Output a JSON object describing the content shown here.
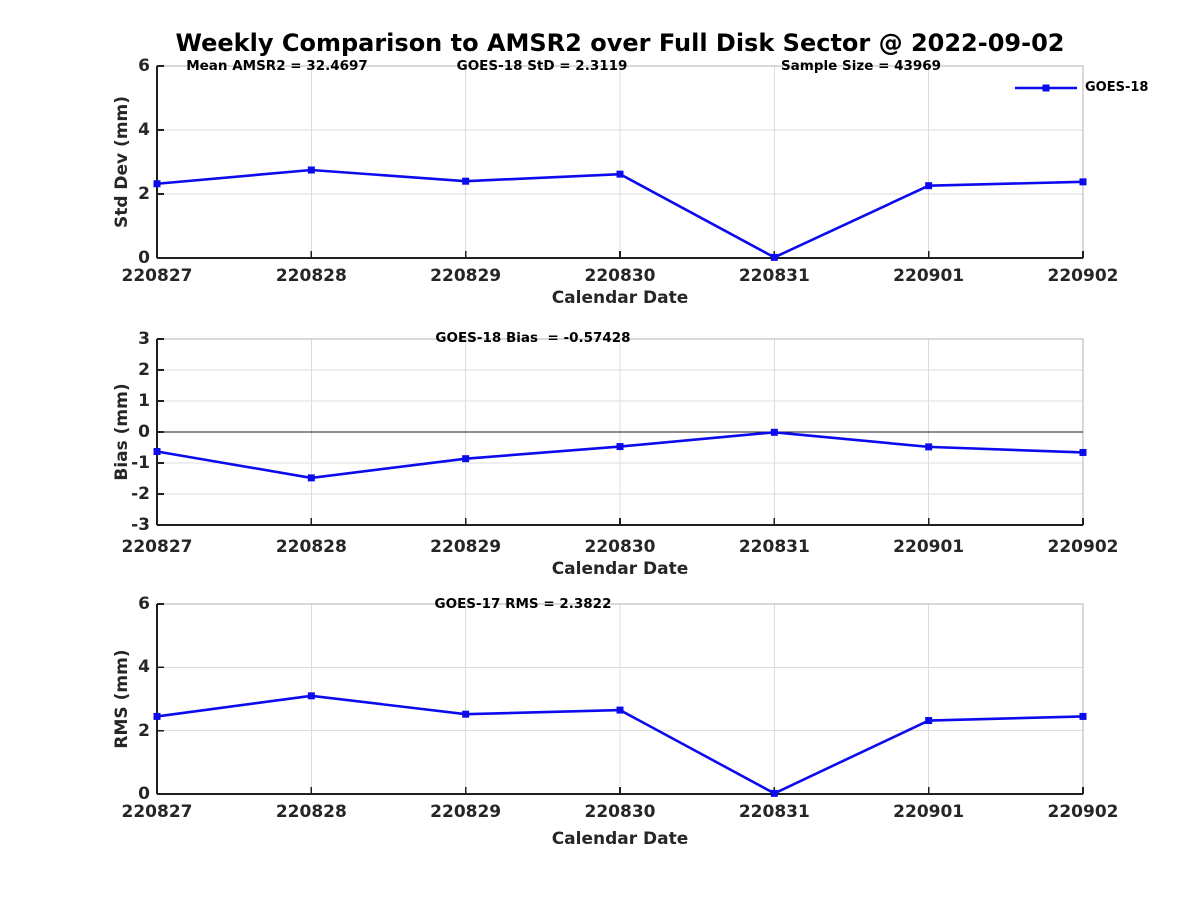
{
  "title": "Weekly Comparison to AMSR2 over Full Disk Sector @ 2022-09-02",
  "x_axis": {
    "label": "Calendar Date",
    "categories": [
      "220827",
      "220828",
      "220829",
      "220830",
      "220831",
      "220901",
      "220902"
    ]
  },
  "legend": {
    "label": "GOES-18",
    "position": "top-right"
  },
  "colors": {
    "line": "#0b0bee",
    "grid": "#dcdcdc",
    "frame": "#b3b3b3",
    "axis": "#1f1f1f",
    "tick_text": "#262626",
    "title_text": "#000000",
    "zero_line": "#1a1a1a"
  },
  "chart_data": [
    {
      "type": "line",
      "name": "std-dev",
      "ylabel": "Std Dev (mm)",
      "xlabel": "Calendar Date",
      "ylim": [
        0,
        6
      ],
      "yticks": [
        0,
        2,
        4,
        6
      ],
      "grid": true,
      "categories": [
        "220827",
        "220828",
        "220829",
        "220830",
        "220831",
        "220901",
        "220902"
      ],
      "series": [
        {
          "name": "GOES-18",
          "values": [
            2.32,
            2.75,
            2.4,
            2.62,
            0.02,
            2.26,
            2.38
          ]
        }
      ],
      "annotations": [
        "Mean AMSR2 = 32.4697",
        "GOES-18 StD = 2.3119",
        "Sample Size = 43969"
      ]
    },
    {
      "type": "line",
      "name": "bias",
      "ylabel": "Bias (mm)",
      "xlabel": "Calendar Date",
      "ylim": [
        -3,
        3
      ],
      "yticks": [
        -3,
        -2,
        -1,
        0,
        1,
        2,
        3
      ],
      "zero_line": true,
      "grid": true,
      "categories": [
        "220827",
        "220828",
        "220829",
        "220830",
        "220831",
        "220901",
        "220902"
      ],
      "series": [
        {
          "name": "GOES-18",
          "values": [
            -0.63,
            -1.48,
            -0.86,
            -0.47,
            -0.01,
            -0.48,
            -0.66
          ]
        }
      ],
      "annotations": [
        "GOES-18 Bias  = -0.57428"
      ]
    },
    {
      "type": "line",
      "name": "rms",
      "ylabel": "RMS (mm)",
      "xlabel": "Calendar Date",
      "ylim": [
        0,
        6
      ],
      "yticks": [
        0,
        2,
        4,
        6
      ],
      "grid": true,
      "categories": [
        "220827",
        "220828",
        "220829",
        "220830",
        "220831",
        "220901",
        "220902"
      ],
      "series": [
        {
          "name": "GOES-18",
          "values": [
            2.45,
            3.1,
            2.52,
            2.65,
            0.02,
            2.32,
            2.45
          ]
        }
      ],
      "annotations": [
        "GOES-17 RMS = 2.3822"
      ]
    }
  ]
}
